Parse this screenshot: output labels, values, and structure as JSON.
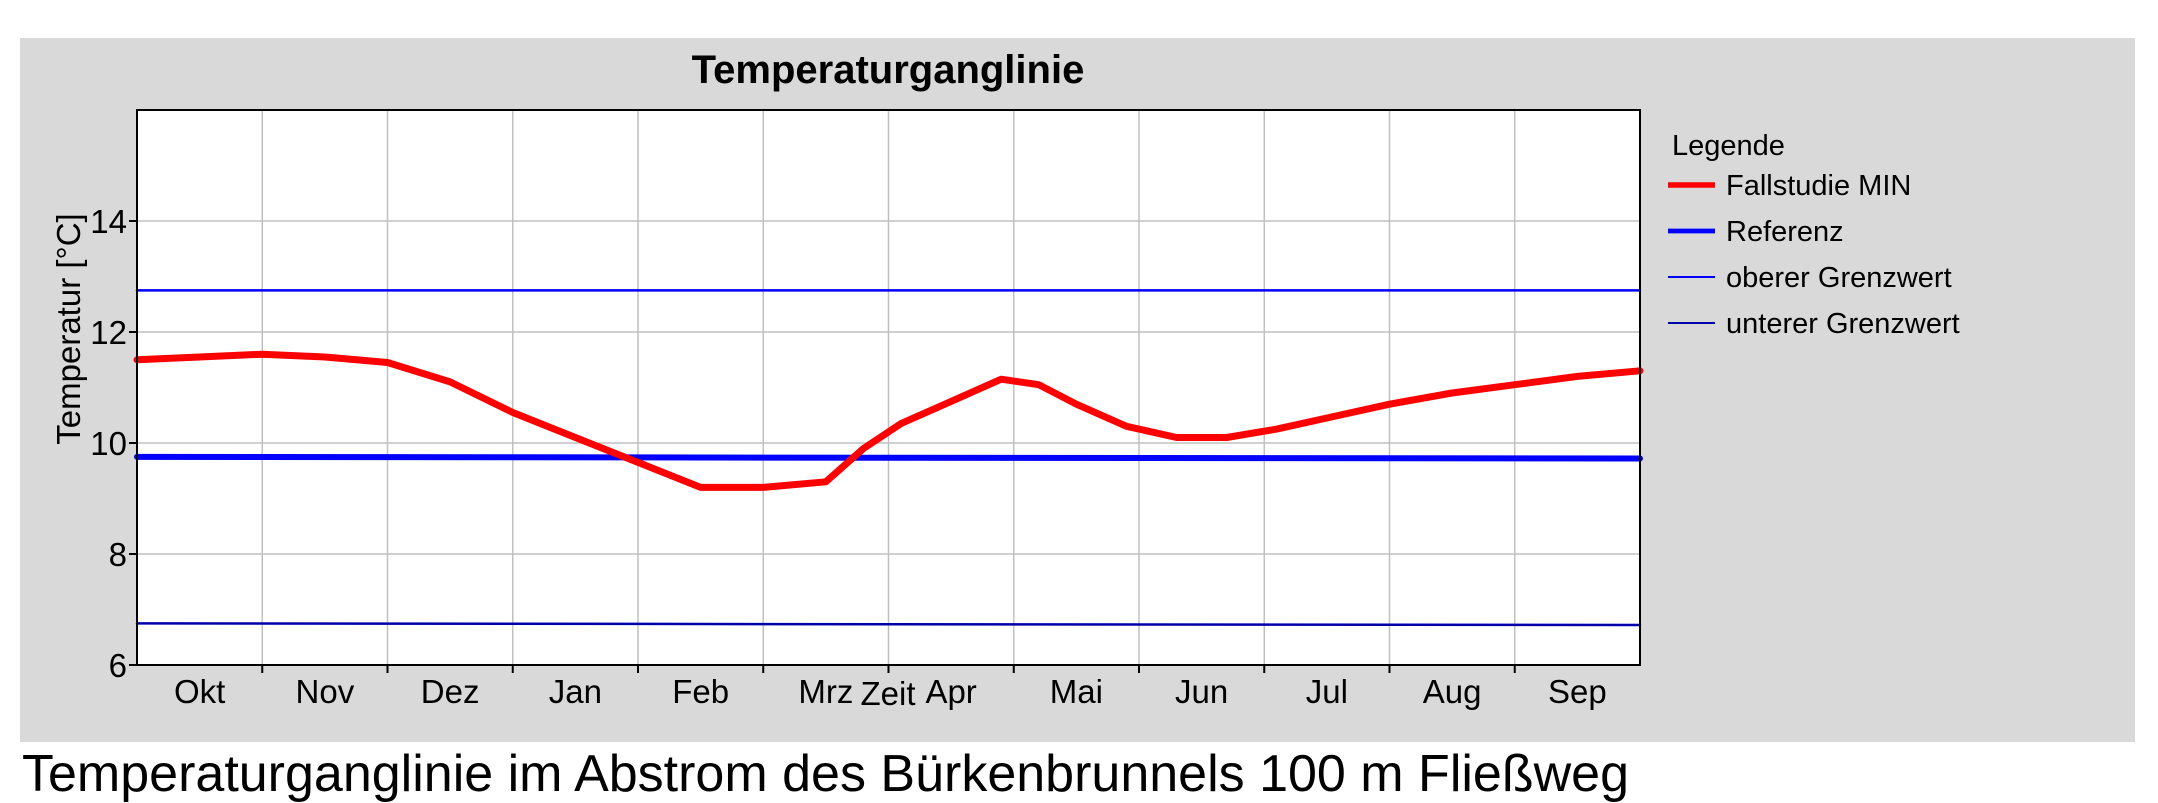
{
  "chart_data": {
    "type": "line",
    "title": "Temperaturganglinie",
    "xlabel": "Zeit",
    "ylabel": "Temperatur [°C]",
    "ylim": [
      6,
      16
    ],
    "yticks": [
      6,
      8,
      10,
      12,
      14
    ],
    "categories": [
      "Okt",
      "Nov",
      "Dez",
      "Jan",
      "Feb",
      "Mrz",
      "Apr",
      "Mai",
      "Jun",
      "Jul",
      "Aug",
      "Sep"
    ],
    "xlim": [
      0,
      12
    ],
    "grid": true,
    "legend": {
      "title": "Legende",
      "position": "right"
    },
    "series": [
      {
        "name": "Fallstudie MIN",
        "color": "#ff0000",
        "x": [
          0,
          0.5,
          1.0,
          1.5,
          2.0,
          2.5,
          3.0,
          3.5,
          4.0,
          4.5,
          5.0,
          5.5,
          5.8,
          6.1,
          6.5,
          6.9,
          7.2,
          7.5,
          7.9,
          8.3,
          8.7,
          9.1,
          9.5,
          10.0,
          10.5,
          11.0,
          11.5,
          12.0
        ],
        "y": [
          11.5,
          11.55,
          11.6,
          11.55,
          11.45,
          11.1,
          10.55,
          10.1,
          9.65,
          9.2,
          9.2,
          9.3,
          9.9,
          10.35,
          10.75,
          11.15,
          11.05,
          10.7,
          10.3,
          10.1,
          10.1,
          10.25,
          10.45,
          10.7,
          10.9,
          11.05,
          11.2,
          11.3
        ]
      },
      {
        "name": "Referenz",
        "color": "#0000ff",
        "x": [
          0,
          12
        ],
        "y": [
          9.75,
          9.72
        ]
      },
      {
        "name": "oberer Grenzwert",
        "color": "#0000ff",
        "x": [
          0,
          12
        ],
        "y": [
          12.75,
          12.75
        ]
      },
      {
        "name": "unterer Grenzwert",
        "color": "#0000aa",
        "x": [
          0,
          12
        ],
        "y": [
          6.75,
          6.72
        ]
      }
    ]
  },
  "caption": "Temperaturganglinie im Abstrom des Bürkenbrunnels 100 m Fließweg"
}
